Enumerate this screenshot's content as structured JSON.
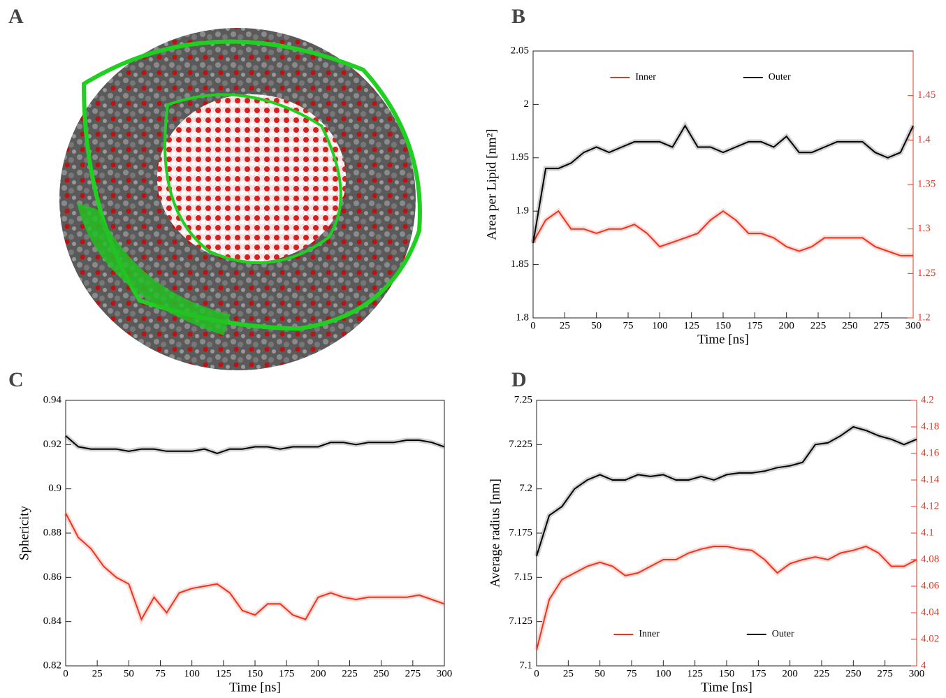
{
  "image_panel": {
    "label": "A"
  },
  "chart_data": [
    {
      "type": "line",
      "panel": "B",
      "x_label": "Time [ns]",
      "y_label": "Area per Lipid [nm²]",
      "legend": "upper center",
      "x": [
        0,
        10,
        20,
        30,
        40,
        50,
        60,
        70,
        80,
        90,
        100,
        110,
        120,
        130,
        140,
        150,
        160,
        170,
        180,
        190,
        200,
        210,
        220,
        230,
        240,
        250,
        260,
        270,
        280,
        290,
        300
      ],
      "xlim": [
        0,
        300
      ],
      "xticks": [
        0,
        25,
        50,
        75,
        100,
        125,
        150,
        175,
        200,
        225,
        250,
        275,
        300
      ],
      "ylim": [
        1.8,
        2.05
      ],
      "yticks": [
        1.8,
        1.85,
        1.9,
        1.95,
        2,
        2.05
      ],
      "y2lim": [
        1.2,
        1.5
      ],
      "y2ticks": [
        1.2,
        1.25,
        1.3,
        1.35,
        1.4,
        1.45
      ],
      "series": [
        {
          "name": "Inner",
          "color": "#f0331e",
          "axis": "y2",
          "values": [
            1.285,
            1.31,
            1.32,
            1.3,
            1.3,
            1.295,
            1.3,
            1.3,
            1.305,
            1.295,
            1.28,
            1.285,
            1.29,
            1.295,
            1.31,
            1.32,
            1.31,
            1.295,
            1.295,
            1.29,
            1.28,
            1.275,
            1.28,
            1.29,
            1.29,
            1.29,
            1.29,
            1.28,
            1.275,
            1.27,
            1.27
          ]
        },
        {
          "name": "Outer",
          "color": "#000000",
          "values": [
            1.87,
            1.94,
            1.94,
            1.945,
            1.955,
            1.96,
            1.955,
            1.96,
            1.965,
            1.965,
            1.965,
            1.96,
            1.98,
            1.96,
            1.96,
            1.955,
            1.96,
            1.965,
            1.965,
            1.96,
            1.97,
            1.955,
            1.955,
            1.96,
            1.965,
            1.965,
            1.965,
            1.955,
            1.95,
            1.955,
            1.98
          ]
        }
      ]
    },
    {
      "type": "line",
      "panel": "C",
      "x_label": "Time [ns]",
      "y_label": "Sphericity",
      "x": [
        0,
        10,
        20,
        30,
        40,
        50,
        60,
        70,
        80,
        90,
        100,
        110,
        120,
        130,
        140,
        150,
        160,
        170,
        180,
        190,
        200,
        210,
        220,
        230,
        240,
        250,
        260,
        270,
        280,
        290,
        300
      ],
      "xlim": [
        0,
        300
      ],
      "xticks": [
        0,
        25,
        50,
        75,
        100,
        125,
        150,
        175,
        200,
        225,
        250,
        275,
        300
      ],
      "ylim": [
        0.82,
        0.94
      ],
      "yticks": [
        0.82,
        0.84,
        0.86,
        0.88,
        0.9,
        0.92,
        0.94
      ],
      "series": [
        {
          "color": "#000000",
          "values": [
            0.924,
            0.919,
            0.918,
            0.918,
            0.918,
            0.917,
            0.918,
            0.918,
            0.917,
            0.917,
            0.917,
            0.918,
            0.916,
            0.918,
            0.918,
            0.919,
            0.919,
            0.918,
            0.919,
            0.919,
            0.919,
            0.921,
            0.921,
            0.92,
            0.921,
            0.921,
            0.921,
            0.922,
            0.922,
            0.921,
            0.919
          ]
        },
        {
          "color": "#f0331e",
          "values": [
            0.889,
            0.878,
            0.873,
            0.865,
            0.86,
            0.857,
            0.841,
            0.851,
            0.844,
            0.853,
            0.855,
            0.856,
            0.857,
            0.853,
            0.845,
            0.843,
            0.848,
            0.848,
            0.843,
            0.841,
            0.851,
            0.853,
            0.851,
            0.85,
            0.851,
            0.851,
            0.851,
            0.851,
            0.852,
            0.85,
            0.848
          ]
        }
      ]
    },
    {
      "type": "line",
      "panel": "D",
      "x_label": "Time [ns]",
      "y_label": "Average radius [nm]",
      "legend": "lower center",
      "x": [
        0,
        10,
        20,
        30,
        40,
        50,
        60,
        70,
        80,
        90,
        100,
        110,
        120,
        130,
        140,
        150,
        160,
        170,
        180,
        190,
        200,
        210,
        220,
        230,
        240,
        250,
        260,
        270,
        280,
        290,
        300
      ],
      "xlim": [
        0,
        300
      ],
      "xticks": [
        0,
        25,
        50,
        75,
        100,
        125,
        150,
        175,
        200,
        225,
        250,
        275,
        300
      ],
      "ylim": [
        7.1,
        7.25
      ],
      "yticks": [
        7.1,
        7.125,
        7.15,
        7.175,
        7.2,
        7.225,
        7.25
      ],
      "y2lim": [
        4,
        4.2
      ],
      "y2ticks": [
        4,
        4.02,
        4.04,
        4.06,
        4.08,
        4.1,
        4.12,
        4.14,
        4.16,
        4.18,
        4.2
      ],
      "series": [
        {
          "name": "Inner",
          "color": "#f0331e",
          "axis": "y2",
          "values": [
            4.012,
            4.05,
            4.065,
            4.07,
            4.075,
            4.078,
            4.075,
            4.068,
            4.07,
            4.075,
            4.08,
            4.08,
            4.085,
            4.088,
            4.09,
            4.09,
            4.088,
            4.087,
            4.08,
            4.07,
            4.077,
            4.08,
            4.082,
            4.08,
            4.085,
            4.087,
            4.09,
            4.085,
            4.075,
            4.075,
            4.08
          ]
        },
        {
          "name": "Outer",
          "color": "#000000",
          "values": [
            7.162,
            7.185,
            7.19,
            7.2,
            7.205,
            7.208,
            7.205,
            7.205,
            7.208,
            7.207,
            7.208,
            7.205,
            7.205,
            7.207,
            7.205,
            7.208,
            7.209,
            7.209,
            7.21,
            7.212,
            7.213,
            7.215,
            7.225,
            7.226,
            7.23,
            7.235,
            7.233,
            7.23,
            7.228,
            7.225,
            7.228
          ]
        }
      ]
    }
  ]
}
